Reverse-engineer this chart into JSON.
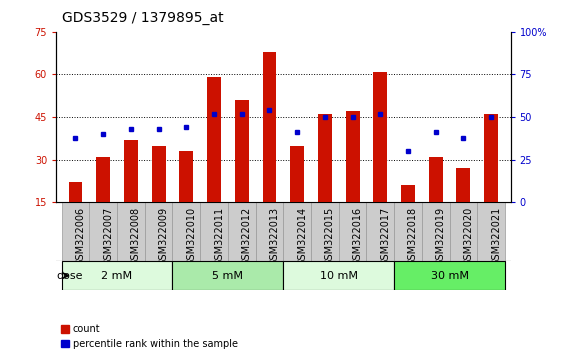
{
  "title": "GDS3529 / 1379895_at",
  "samples": [
    "GSM322006",
    "GSM322007",
    "GSM322008",
    "GSM322009",
    "GSM322010",
    "GSM322011",
    "GSM322012",
    "GSM322013",
    "GSM322014",
    "GSM322015",
    "GSM322016",
    "GSM322017",
    "GSM322018",
    "GSM322019",
    "GSM322020",
    "GSM322021"
  ],
  "counts": [
    22,
    31,
    37,
    35,
    33,
    59,
    51,
    68,
    35,
    46,
    47,
    61,
    21,
    31,
    27,
    46
  ],
  "percentiles": [
    38,
    40,
    43,
    43,
    44,
    52,
    52,
    54,
    41,
    50,
    50,
    52,
    30,
    41,
    38,
    50
  ],
  "dose_groups": [
    {
      "label": "2 mM",
      "start": 0,
      "end": 3
    },
    {
      "label": "5 mM",
      "start": 4,
      "end": 7
    },
    {
      "label": "10 mM",
      "start": 8,
      "end": 11
    },
    {
      "label": "30 mM",
      "start": 12,
      "end": 15
    }
  ],
  "dose_colors": [
    "#ddfadd",
    "#aaeaaa",
    "#ddfadd",
    "#66ee66"
  ],
  "bar_color": "#cc1100",
  "marker_color": "#0000cc",
  "ylim_left": [
    15,
    75
  ],
  "ylim_right": [
    0,
    100
  ],
  "yticks_left": [
    15,
    30,
    45,
    60,
    75
  ],
  "yticks_right": [
    0,
    25,
    50,
    75,
    100
  ],
  "grid_yticks": [
    30,
    45,
    60
  ],
  "legend_labels": [
    "count",
    "percentile rank within the sample"
  ],
  "dose_label": "dose",
  "bar_width": 0.5,
  "title_fontsize": 10,
  "tick_fontsize": 7,
  "label_fontsize": 7,
  "sample_cell_color": "#cccccc",
  "sample_cell_border": "#999999"
}
